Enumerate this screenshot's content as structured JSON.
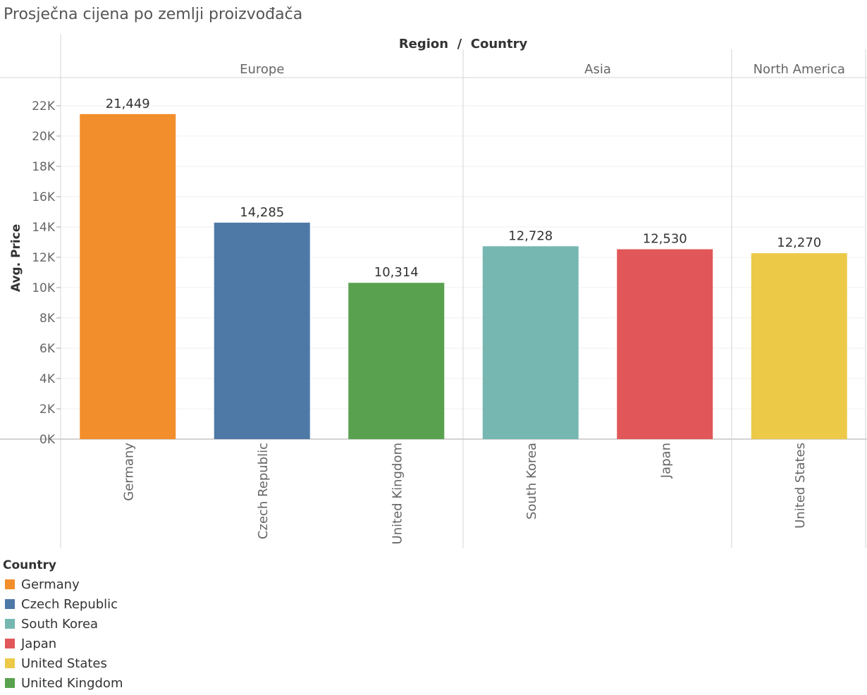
{
  "title": "Prosječna cijena po zemlji proizvođača",
  "chart_data": {
    "type": "bar",
    "column_header": "Region  /  Country",
    "ylabel": "Avg. Price",
    "ylim": [
      0,
      23000
    ],
    "yticks": [
      0,
      2000,
      4000,
      6000,
      8000,
      10000,
      12000,
      14000,
      16000,
      18000,
      20000,
      22000
    ],
    "ytick_labels": [
      "0K",
      "2K",
      "4K",
      "6K",
      "8K",
      "10K",
      "12K",
      "14K",
      "16K",
      "18K",
      "20K",
      "22K"
    ],
    "regions": [
      {
        "name": "Europe",
        "countries": [
          "Germany",
          "Czech Republic",
          "United Kingdom"
        ]
      },
      {
        "name": "Asia",
        "countries": [
          "South Korea",
          "Japan"
        ]
      },
      {
        "name": "North America",
        "countries": [
          "United States"
        ]
      }
    ],
    "categories": [
      "Germany",
      "Czech Republic",
      "United Kingdom",
      "South Korea",
      "Japan",
      "United States"
    ],
    "values": [
      21449,
      14285,
      10314,
      12728,
      12530,
      12270
    ],
    "value_labels": [
      "21,449",
      "14,285",
      "10,314",
      "12,728",
      "12,530",
      "12,270"
    ],
    "colors": [
      "#f28e2b",
      "#4e79a7",
      "#59a14f",
      "#76b7b2",
      "#e15759",
      "#edc948"
    ],
    "grid": true,
    "legend": {
      "title": "Country",
      "placement": "bottom-left",
      "items": [
        {
          "label": "Germany",
          "color": "#f28e2b"
        },
        {
          "label": "Czech Republic",
          "color": "#4e79a7"
        },
        {
          "label": "South Korea",
          "color": "#76b7b2"
        },
        {
          "label": "Japan",
          "color": "#e15759"
        },
        {
          "label": "United States",
          "color": "#edc948"
        },
        {
          "label": "United Kingdom",
          "color": "#59a14f"
        }
      ]
    }
  }
}
